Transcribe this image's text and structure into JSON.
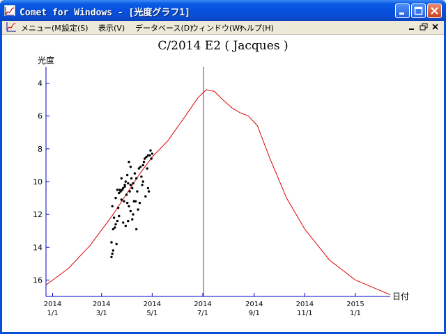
{
  "window": {
    "title": "Comet for Windows - [光度グラフ1]",
    "colors": {
      "titlebar": "#0650de",
      "face": "#ece9d8"
    },
    "caption_buttons": [
      "minimize-icon",
      "maximize-icon",
      "close-icon"
    ]
  },
  "menubar": {
    "items": [
      "メニュー(M)",
      "設定(S)",
      "表示(V)",
      "データベース(D)",
      "ウィンドウ(W)",
      "ヘルプ(H)"
    ],
    "mdi_buttons": [
      "minimize-icon",
      "restore-icon",
      "close-icon"
    ]
  },
  "chart_data": {
    "type": "scatter",
    "title": "C/2014 E2 ( Jacques )",
    "xlabel": "日付",
    "ylabel": "光度",
    "y_inverted": true,
    "ylim": [
      3.0,
      17.0
    ],
    "yticks": [
      4,
      6,
      8,
      10,
      12,
      14,
      16
    ],
    "xlim": [
      "2013-12-24",
      "2015-02-12"
    ],
    "xticks": [
      {
        "date": "2014-01-01",
        "label": [
          "2014",
          "1/1"
        ]
      },
      {
        "date": "2014-03-01",
        "label": [
          "2014",
          "3/1"
        ]
      },
      {
        "date": "2014-05-01",
        "label": [
          "2014",
          "5/1"
        ]
      },
      {
        "date": "2014-07-01",
        "label": [
          "2014",
          "7/1"
        ]
      },
      {
        "date": "2014-09-01",
        "label": [
          "2014",
          "9/1"
        ]
      },
      {
        "date": "2014-11-01",
        "label": [
          "2014",
          "11/1"
        ]
      },
      {
        "date": "2015-01-01",
        "label": [
          "2015",
          "1/1"
        ]
      }
    ],
    "perihelion_marker": {
      "date": "2014-07-02",
      "color": "#c000c0"
    },
    "curve_color": "#e00000",
    "axis_color": "#0000c0",
    "series": [
      {
        "type": "line",
        "x": [
          "2013-12-24",
          "2014-01-20",
          "2014-02-15",
          "2014-03-15",
          "2014-04-15",
          "2014-05-01",
          "2014-05-20",
          "2014-06-10",
          "2014-06-25",
          "2014-07-05",
          "2014-07-15",
          "2014-07-25",
          "2014-08-05",
          "2014-08-15",
          "2014-08-25",
          "2014-09-05",
          "2014-09-20",
          "2014-10-10",
          "2014-11-01",
          "2014-12-01",
          "2015-01-01",
          "2015-02-12"
        ],
        "y": [
          16.3,
          15.3,
          13.9,
          12.0,
          9.6,
          8.5,
          7.5,
          6.0,
          4.9,
          4.4,
          4.5,
          5.0,
          5.5,
          5.8,
          6.0,
          6.6,
          8.6,
          11.0,
          12.9,
          14.8,
          16.0,
          16.9
        ]
      },
      {
        "type": "scatter",
        "x": [
          "2014-03-13",
          "2014-03-13",
          "2014-03-14",
          "2014-03-14",
          "2014-03-15",
          "2014-03-15",
          "2014-03-16",
          "2014-03-17",
          "2014-03-18",
          "2014-03-18",
          "2014-03-20",
          "2014-03-20",
          "2014-03-21",
          "2014-03-22",
          "2014-03-22",
          "2014-03-23",
          "2014-03-24",
          "2014-03-25",
          "2014-03-25",
          "2014-03-26",
          "2014-03-27",
          "2014-03-27",
          "2014-03-28",
          "2014-03-29",
          "2014-03-30",
          "2014-03-30",
          "2014-03-31",
          "2014-04-01",
          "2014-04-01",
          "2014-04-02",
          "2014-04-03",
          "2014-04-03",
          "2014-04-04",
          "2014-04-05",
          "2014-04-05",
          "2014-04-06",
          "2014-04-07",
          "2014-04-07",
          "2014-04-08",
          "2014-04-09",
          "2014-04-10",
          "2014-04-11",
          "2014-04-12",
          "2014-04-13",
          "2014-04-14",
          "2014-04-15",
          "2014-04-16",
          "2014-04-17",
          "2014-04-18",
          "2014-04-19",
          "2014-04-20",
          "2014-04-21",
          "2014-04-22",
          "2014-04-23",
          "2014-04-24",
          "2014-04-25",
          "2014-04-26",
          "2014-04-27",
          "2014-04-28",
          "2014-04-29",
          "2014-04-30",
          "2014-05-01",
          "2014-03-29",
          "2014-04-02",
          "2014-04-08",
          "2014-04-12",
          "2014-04-20",
          "2014-04-26",
          "2014-03-19",
          "2014-04-05"
        ],
        "y": [
          14.6,
          13.7,
          14.4,
          11.5,
          14.2,
          12.9,
          12.2,
          12.8,
          11.0,
          12.6,
          12.4,
          10.5,
          11.6,
          10.7,
          12.1,
          10.5,
          10.6,
          9.8,
          11.1,
          10.5,
          10.4,
          12.5,
          11.2,
          10.2,
          10.0,
          12.7,
          10.8,
          9.6,
          11.3,
          10.1,
          8.8,
          11.5,
          10.6,
          9.1,
          11.8,
          9.8,
          10.4,
          12.3,
          10.1,
          11.2,
          9.5,
          11.2,
          9.8,
          10.6,
          11.7,
          9.2,
          11.3,
          9.1,
          9.7,
          10.2,
          9.0,
          8.8,
          8.6,
          10.9,
          8.5,
          9.2,
          8.4,
          10.6,
          8.4,
          8.1,
          8.6,
          8.3,
          10.3,
          12.4,
          12.0,
          12.9,
          10.0,
          10.4,
          13.8,
          10.2
        ]
      }
    ]
  }
}
